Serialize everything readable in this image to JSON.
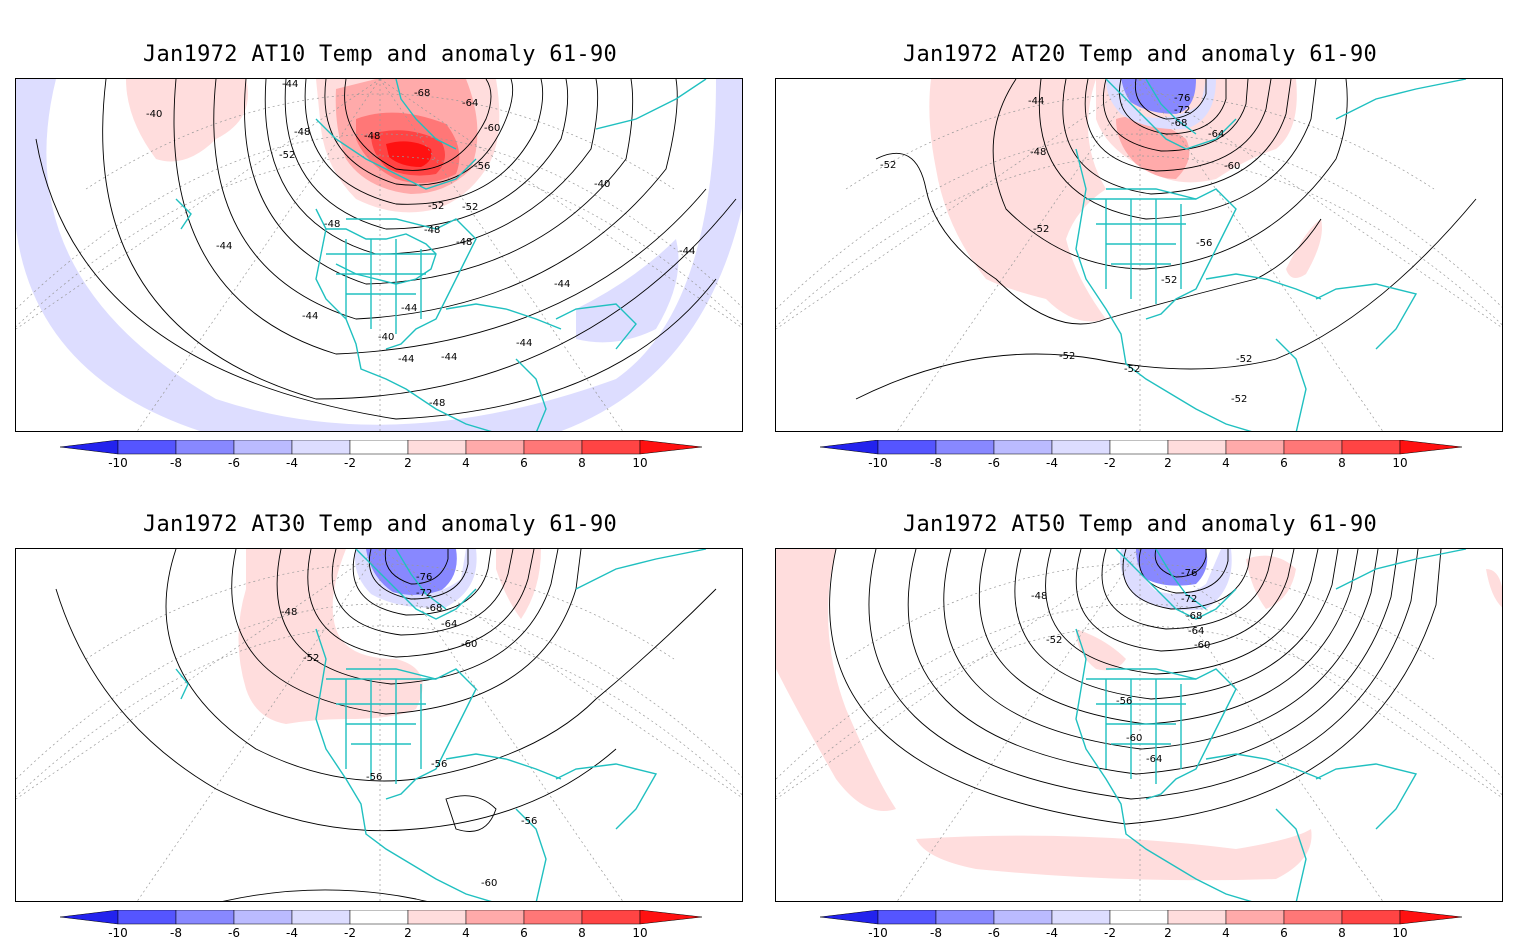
{
  "colors": {
    "coast": "#20c0c0",
    "neg": [
      "#2222ee",
      "#5555ff",
      "#8888ff",
      "#bbbbff",
      "#ddddff"
    ],
    "pos": [
      "#ffdddd",
      "#ffaaaa",
      "#ff7777",
      "#ff4444",
      "#ff1111"
    ],
    "contour": "#000000",
    "grid": "#999999"
  },
  "colorbar": {
    "ticks": [
      "-10",
      "-8",
      "-6",
      "-4",
      "-2",
      "2",
      "4",
      "6",
      "8",
      "10"
    ]
  },
  "panels": [
    {
      "title": "Jan1972 AT10 Temp and anomaly 61-90",
      "labels": [
        "-68",
        "-64",
        "-60",
        "-56",
        "-52",
        "-52",
        "-48",
        "-48",
        "-48",
        "-52",
        "-48",
        "-44",
        "-44",
        "-44",
        "-44",
        "-44",
        "-44",
        "-44",
        "-40",
        "-40",
        "-40",
        "-44",
        "-48",
        "-48",
        "-44"
      ]
    },
    {
      "title": "Jan1972 AT20 Temp and anomaly 61-90",
      "labels": [
        "-76",
        "-72",
        "-68",
        "-64",
        "-60",
        "-44",
        "-48",
        "-52",
        "-52",
        "-56",
        "-52",
        "-52",
        "-52",
        "-52",
        "-52"
      ]
    },
    {
      "title": "Jan1972 AT30 Temp and anomaly 61-90",
      "labels": [
        "-76",
        "-72",
        "-68",
        "-64",
        "-60",
        "-48",
        "-52",
        "-56",
        "-56",
        "-56",
        "-60"
      ]
    },
    {
      "title": "Jan1972 AT50 Temp and anomaly 61-90",
      "labels": [
        "-76",
        "-72",
        "-68",
        "-64",
        "-60",
        "-48",
        "-52",
        "-56",
        "-60",
        "-64"
      ]
    }
  ]
}
